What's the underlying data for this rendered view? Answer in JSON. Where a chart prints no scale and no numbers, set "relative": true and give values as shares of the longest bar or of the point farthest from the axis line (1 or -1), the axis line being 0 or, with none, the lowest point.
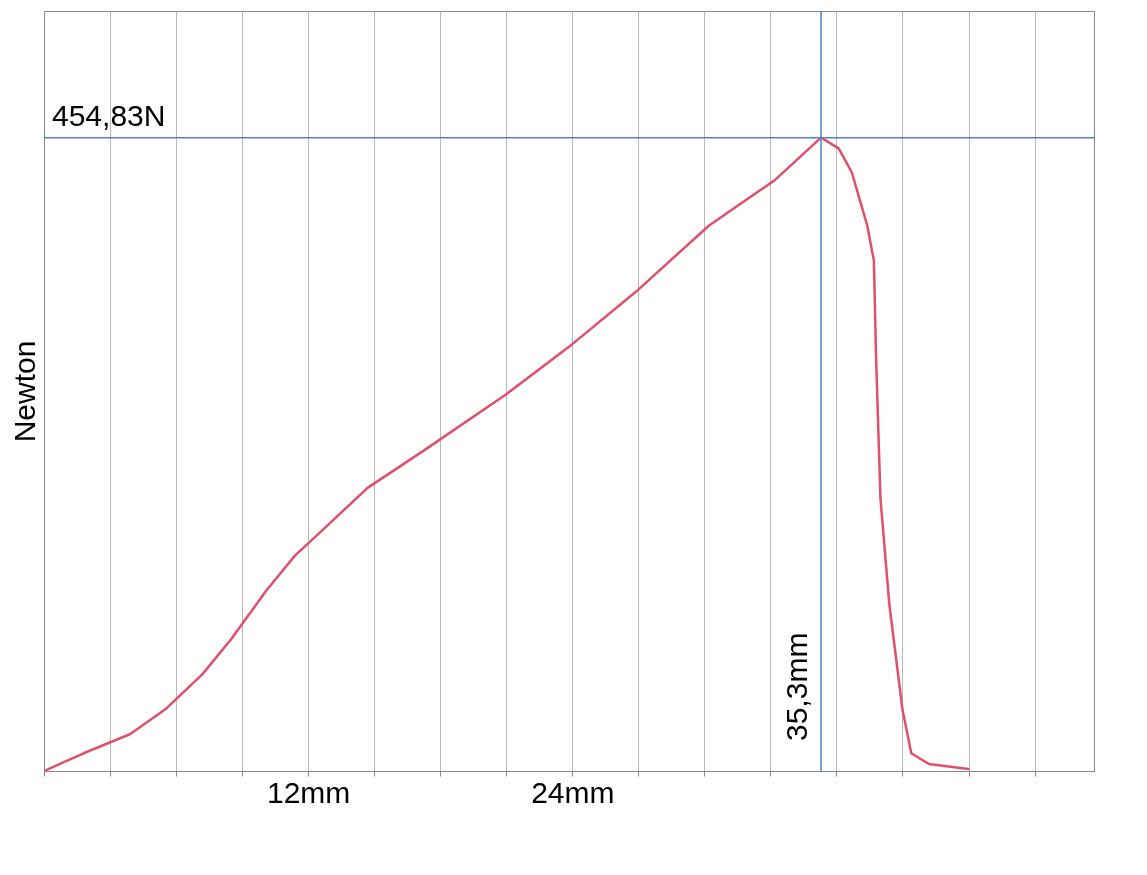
{
  "chart_data": {
    "type": "line",
    "ylabel": "Newton",
    "grid": "x",
    "marker": "none",
    "line_style": "solid",
    "xlim": [
      0,
      47.7
    ],
    "relative": true,
    "xticks": [
      {
        "value": 0,
        "label": null
      },
      {
        "value": 3,
        "label": null
      },
      {
        "value": 6,
        "label": null
      },
      {
        "value": 9,
        "label": null
      },
      {
        "value": 12,
        "label": "12mm"
      },
      {
        "value": 15,
        "label": null
      },
      {
        "value": 18,
        "label": null
      },
      {
        "value": 21,
        "label": null
      },
      {
        "value": 24,
        "label": "24mm"
      },
      {
        "value": 27,
        "label": null
      },
      {
        "value": 30,
        "label": null
      },
      {
        "value": 33,
        "label": null
      },
      {
        "value": 36,
        "label": null
      },
      {
        "value": 39,
        "label": null
      },
      {
        "value": 42,
        "label": null
      },
      {
        "value": 45,
        "label": null
      }
    ],
    "x": [
      0,
      1.8,
      3.9,
      5.5,
      7.2,
      8.5,
      10.1,
      11.4,
      12.7,
      14.7,
      17.3,
      21.0,
      24.0,
      26.9,
      30.2,
      33.2,
      35.3,
      36.1,
      36.7,
      37.4,
      37.7,
      37.8,
      38.0,
      38.4,
      39.0,
      39.4,
      40.2,
      42.0
    ],
    "series": [
      {
        "color": "#e0506a",
        "values": [
          0,
          0.028,
          0.058,
          0.097,
          0.153,
          0.208,
          0.285,
          0.34,
          0.382,
          0.447,
          0.507,
          0.595,
          0.674,
          0.757,
          0.861,
          0.933,
          1,
          0.983,
          0.945,
          0.861,
          0.806,
          0.653,
          0.43,
          0.264,
          0.097,
          0.028,
          0.011,
          0.003
        ]
      }
    ],
    "ref_lines": [
      {
        "axis": "y",
        "value": 1,
        "label": "454,83N",
        "color": "#4f81bd"
      },
      {
        "axis": "x",
        "value": 35.3,
        "label": "35,3mm",
        "color": "#4f81bd"
      }
    ]
  }
}
